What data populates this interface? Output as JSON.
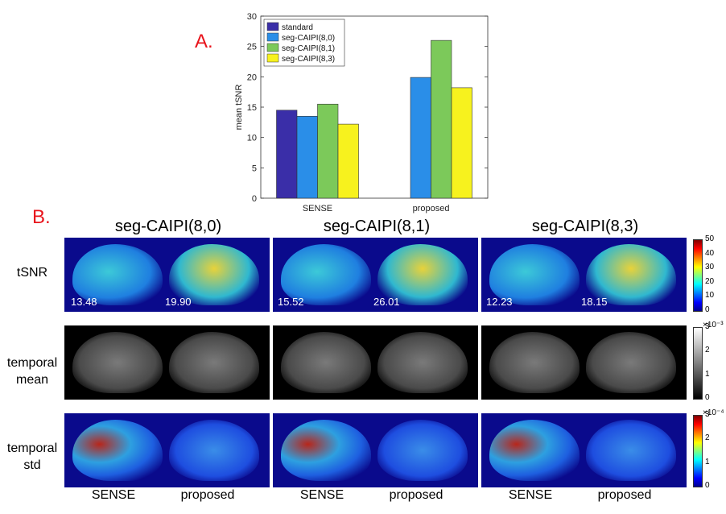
{
  "panel_labels": {
    "a": "A.",
    "b": "B."
  },
  "chart_data": {
    "type": "bar",
    "categories": [
      "SENSE",
      "proposed"
    ],
    "series": [
      {
        "name": "standard",
        "values": [
          14.5,
          null
        ],
        "color": "#3a2ea8"
      },
      {
        "name": "seg-CAIPI(8,0)",
        "values": [
          13.5,
          19.9
        ],
        "color": "#2a8ee8"
      },
      {
        "name": "seg-CAIPI(8,1)",
        "values": [
          15.5,
          26.0
        ],
        "color": "#7cc95a"
      },
      {
        "name": "seg-CAIPI(8,3)",
        "values": [
          12.2,
          18.2
        ],
        "color": "#f7f21e"
      }
    ],
    "ylabel": "mean tSNR",
    "ylim": [
      0,
      30
    ],
    "yticks": [
      0,
      5,
      10,
      15,
      20,
      25,
      30
    ],
    "legend": "top-left"
  },
  "figure_b": {
    "columns": [
      "seg-CAIPI(8,0)",
      "seg-CAIPI(8,1)",
      "seg-CAIPI(8,3)"
    ],
    "rows": [
      {
        "line1": "tSNR",
        "line2": ""
      },
      {
        "line1": "temporal",
        "line2": "mean"
      },
      {
        "line1": "temporal",
        "line2": "std"
      }
    ],
    "tsnr_values": [
      [
        "13.48",
        "19.90"
      ],
      [
        "15.52",
        "26.01"
      ],
      [
        "12.23",
        "18.15"
      ]
    ],
    "bottom_labels": [
      "SENSE",
      "proposed"
    ],
    "colorbars": [
      {
        "ticks": [
          "50",
          "40",
          "30",
          "20",
          "10",
          "0"
        ],
        "exponent": ""
      },
      {
        "ticks": [
          "3",
          "2",
          "1",
          "0"
        ],
        "exponent": "×10⁻³"
      },
      {
        "ticks": [
          "3",
          "2",
          "1",
          "0"
        ],
        "exponent": "×10⁻⁴"
      }
    ]
  }
}
